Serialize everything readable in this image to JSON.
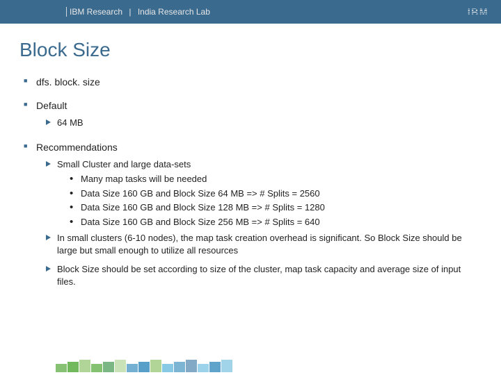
{
  "header": {
    "org": "IBM Research",
    "divider": "|",
    "lab": "India Research Lab",
    "logo_text": "IBM"
  },
  "title": "Block Size",
  "sections": [
    {
      "label": "dfs. block. size"
    },
    {
      "label": "Default",
      "sub": [
        {
          "label": "64 MB"
        }
      ]
    },
    {
      "label": "Recommendations",
      "sub": [
        {
          "label": "Small Cluster and  large data-sets",
          "bullets": [
            "Many map tasks will be needed",
            "Data Size 160 GB and Block Size 64 MB => # Splits  = 2560",
            "Data Size 160 GB and Block Size 128 MB => # Splits = 1280",
            "Data Size 160 GB and Block Size 256 MB => # Splits = 640"
          ]
        },
        {
          "label": "In small clusters (6-10 nodes), the map task creation overhead is significant. So Block Size should be large but small enough to utilize all resources"
        },
        {
          "label": "Block Size should be set according to size of the cluster, map task capacity and average size of input files."
        }
      ]
    }
  ],
  "colors": {
    "header_bg": "#3b6a8f",
    "title_color": "#3b6a8f",
    "bullet_square": "#3b6a8f",
    "bullet_arrow": "#3b6a8f",
    "text": "#222222",
    "background": "#ffffff"
  },
  "footer_pattern": [
    "#5fae46",
    "#5fae46",
    "#a7d08b",
    "#5fae46",
    "#2f8f3f",
    "#a7d08b",
    "#3b8fbf",
    "#3b8fbf",
    "#a7d08b",
    "#6cbce0",
    "#3b8fbf",
    "#2f6f9f",
    "#6cbce0",
    "#3b8fbf",
    "#97cfe6"
  ]
}
